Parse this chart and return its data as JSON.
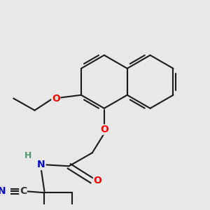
{
  "background_color": "#e8e8e8",
  "bond_color": "#1a1a1a",
  "bond_width": 1.5,
  "atom_colors": {
    "O": "#ff0000",
    "N": "#0000cc",
    "C": "#333333",
    "H": "#4a9a6a"
  },
  "font_size": 10,
  "fig_width": 3.0,
  "fig_height": 3.0,
  "xlim": [
    0,
    300
  ],
  "ylim": [
    0,
    300
  ]
}
